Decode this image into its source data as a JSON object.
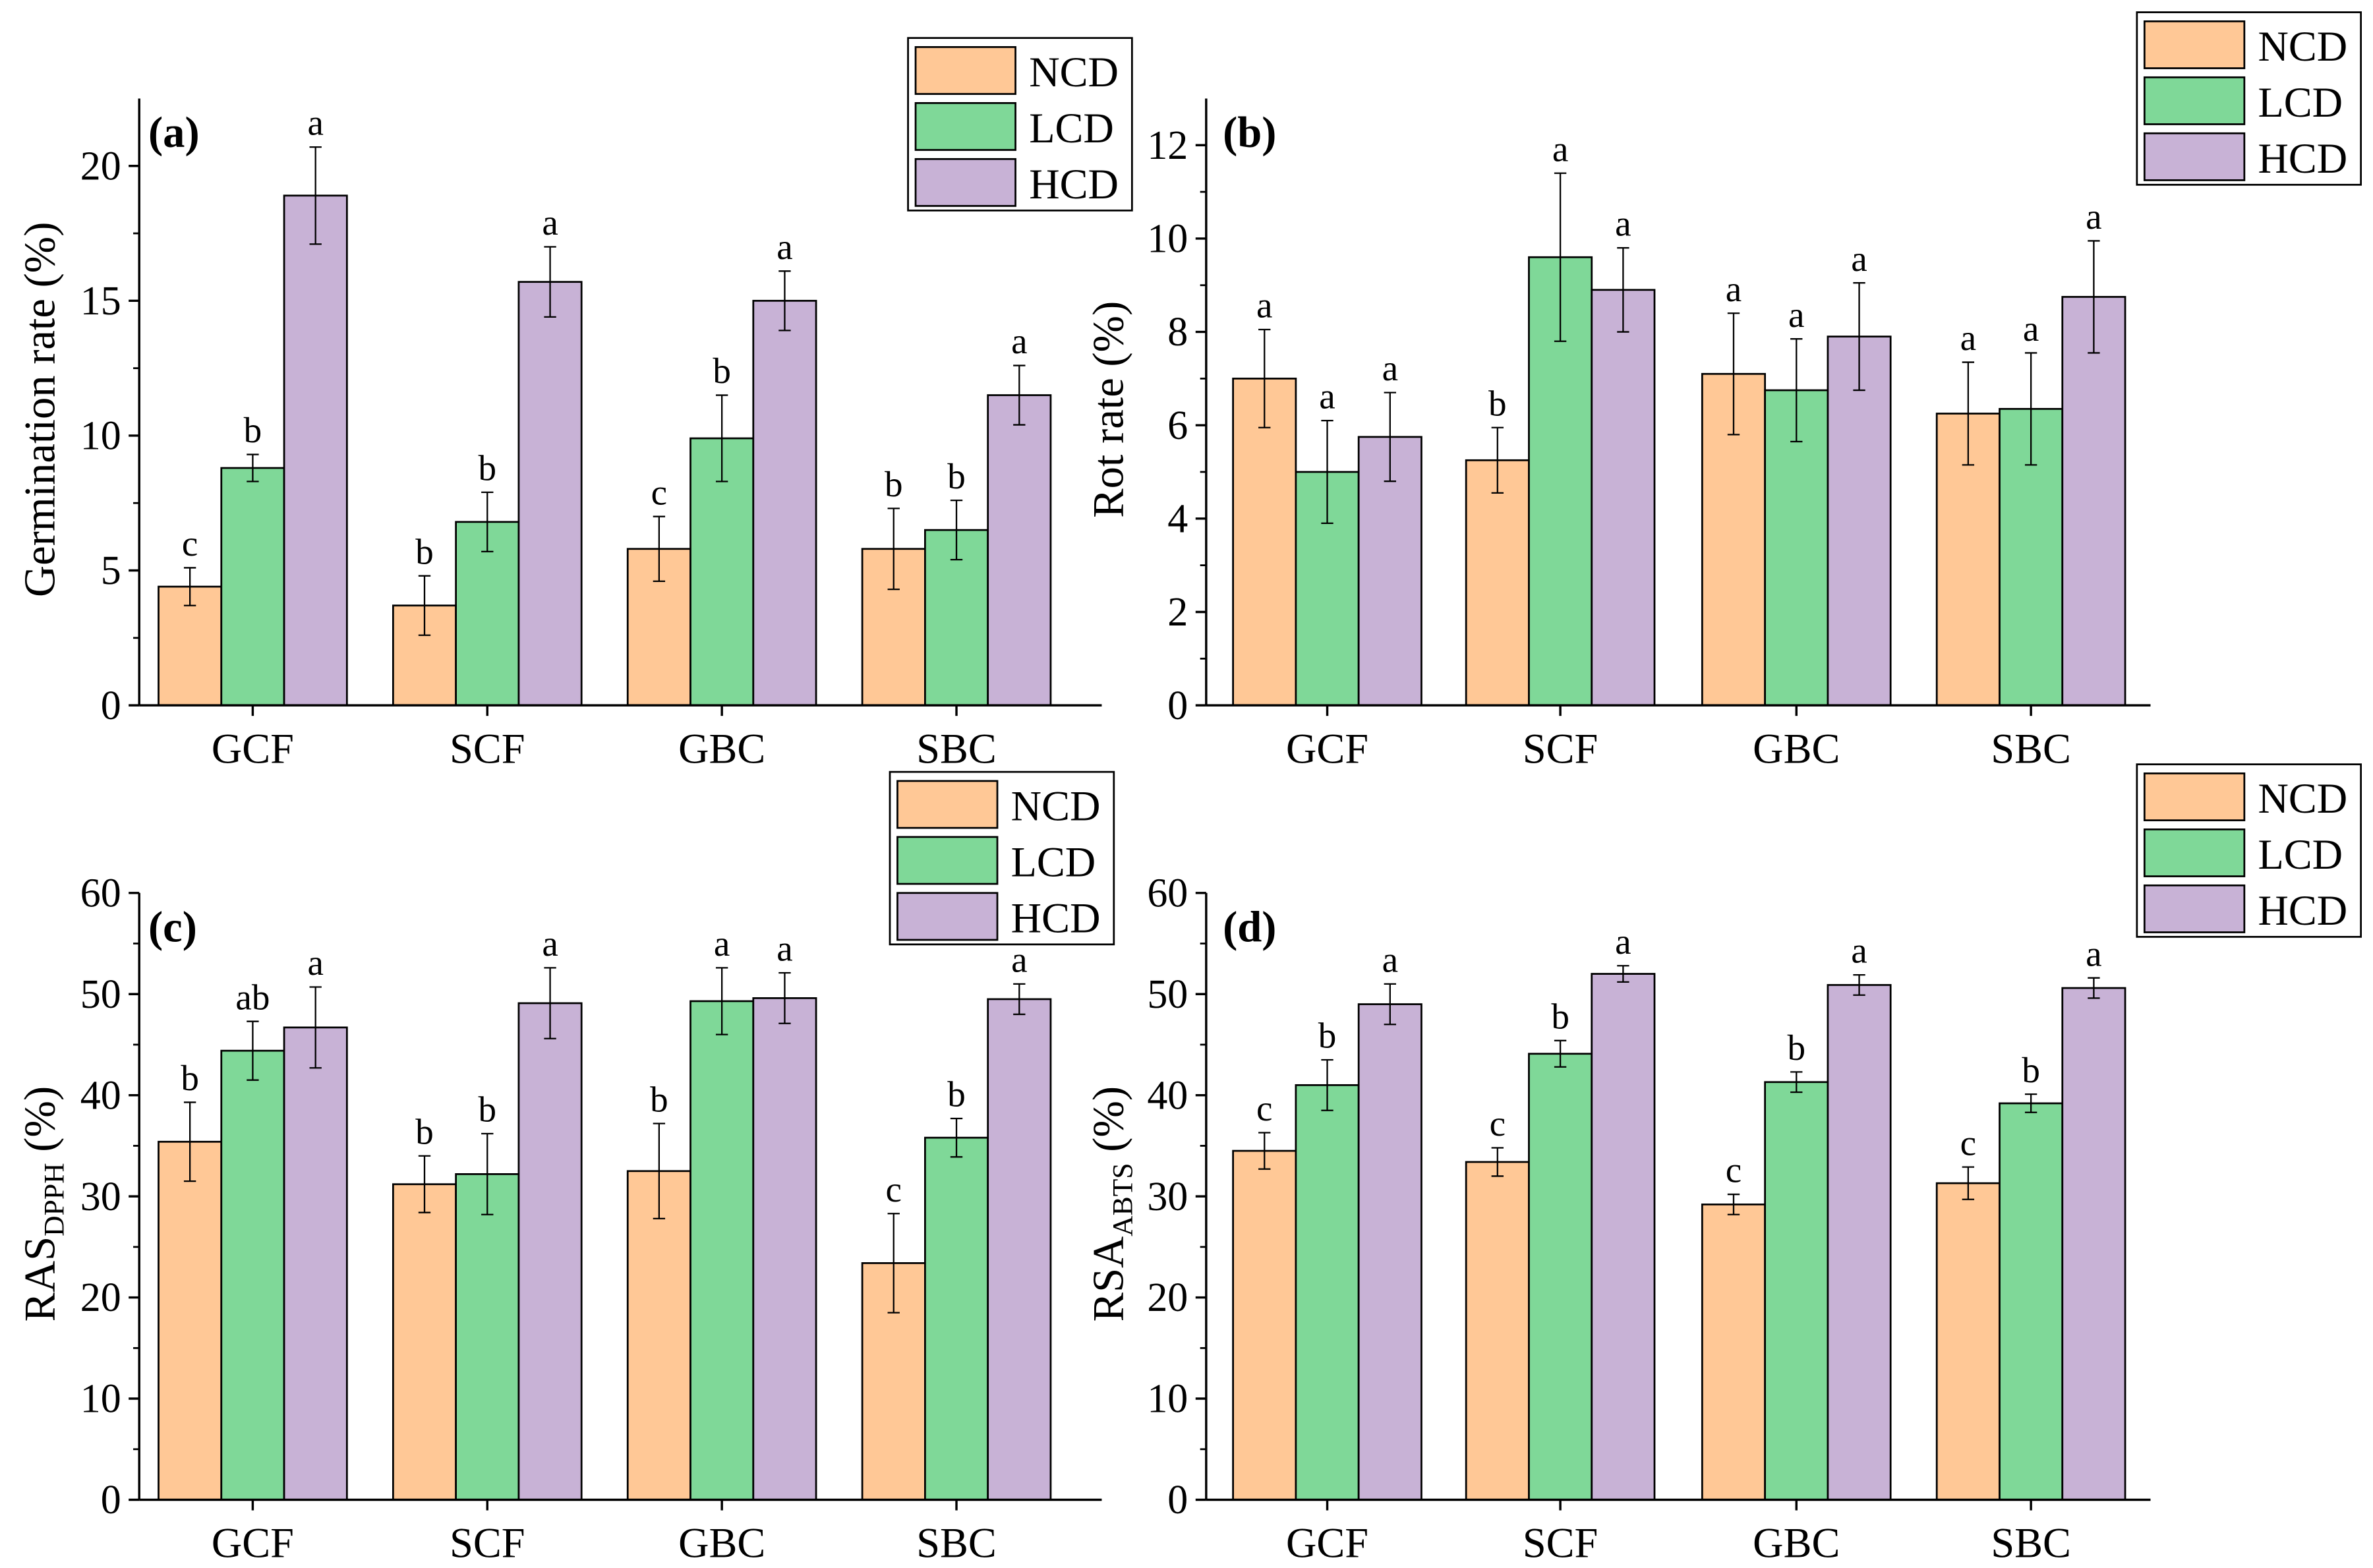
{
  "colors": {
    "NCD": "#FFC896",
    "LCD": "#7FD898",
    "HCD": "#C8B2D6"
  },
  "chart_data": [
    {
      "type": "bar",
      "panel": "(a)",
      "categories": [
        "GCF",
        "SCF",
        "GBC",
        "SBC"
      ],
      "ylabel": "Germination rate (%)",
      "ylabel_sub": "",
      "ylabel_suffix": "",
      "ylim": [
        0,
        22.5
      ],
      "yticks": [
        0,
        5,
        10,
        15,
        20
      ],
      "legend": [
        "NCD",
        "LCD",
        "HCD"
      ],
      "legend_placement": "top-right",
      "series": [
        {
          "name": "NCD",
          "values": [
            4.4,
            3.7,
            5.8,
            5.8
          ],
          "errors": [
            0.7,
            1.1,
            1.2,
            1.5
          ],
          "letters": [
            "c",
            "b",
            "c",
            "b"
          ]
        },
        {
          "name": "LCD",
          "values": [
            8.8,
            6.8,
            9.9,
            6.5
          ],
          "errors": [
            0.5,
            1.1,
            1.6,
            1.1
          ],
          "letters": [
            "b",
            "b",
            "b",
            "b"
          ]
        },
        {
          "name": "HCD",
          "values": [
            18.9,
            15.7,
            15.0,
            11.5
          ],
          "errors": [
            1.8,
            1.3,
            1.1,
            1.1
          ],
          "letters": [
            "a",
            "a",
            "a",
            "a"
          ]
        }
      ]
    },
    {
      "type": "bar",
      "panel": "(b)",
      "categories": [
        "GCF",
        "SCF",
        "GBC",
        "SBC"
      ],
      "ylabel": "Rot rate (%)",
      "ylabel_sub": "",
      "ylabel_suffix": "",
      "ylim": [
        0,
        13
      ],
      "yticks": [
        0,
        2,
        4,
        6,
        8,
        10,
        12
      ],
      "legend": [
        "NCD",
        "LCD",
        "HCD"
      ],
      "legend_placement": "top-right",
      "series": [
        {
          "name": "NCD",
          "values": [
            7.0,
            5.25,
            7.1,
            6.25
          ],
          "errors": [
            1.05,
            0.7,
            1.3,
            1.1
          ],
          "letters": [
            "a",
            "b",
            "a",
            "a"
          ]
        },
        {
          "name": "LCD",
          "values": [
            5.0,
            9.6,
            6.75,
            6.35
          ],
          "errors": [
            1.1,
            1.8,
            1.1,
            1.2
          ],
          "letters": [
            "a",
            "a",
            "a",
            "a"
          ]
        },
        {
          "name": "HCD",
          "values": [
            5.75,
            8.9,
            7.9,
            8.75
          ],
          "errors": [
            0.95,
            0.9,
            1.15,
            1.2
          ],
          "letters": [
            "a",
            "a",
            "a",
            "a"
          ]
        }
      ]
    },
    {
      "type": "bar",
      "panel": "(c)",
      "categories": [
        "GCF",
        "SCF",
        "GBC",
        "SBC"
      ],
      "ylabel": "RAS",
      "ylabel_sub": "DPPH",
      "ylabel_suffix": " (%)",
      "ylim": [
        0,
        60
      ],
      "yticks": [
        0,
        10,
        20,
        30,
        40,
        50,
        60
      ],
      "legend": [
        "NCD",
        "LCD",
        "HCD"
      ],
      "legend_placement": "top-right",
      "series": [
        {
          "name": "NCD",
          "values": [
            35.4,
            31.2,
            32.5,
            23.4
          ],
          "errors": [
            3.9,
            2.8,
            4.7,
            4.9
          ],
          "letters": [
            "b",
            "b",
            "b",
            "c"
          ]
        },
        {
          "name": "LCD",
          "values": [
            44.4,
            32.2,
            49.3,
            35.8
          ],
          "errors": [
            2.9,
            4.0,
            3.3,
            1.9
          ],
          "letters": [
            "ab",
            "b",
            "a",
            "b"
          ]
        },
        {
          "name": "HCD",
          "values": [
            46.7,
            49.1,
            49.6,
            49.5
          ],
          "errors": [
            4.0,
            3.5,
            2.5,
            1.5
          ],
          "letters": [
            "a",
            "a",
            "a",
            "a"
          ]
        }
      ]
    },
    {
      "type": "bar",
      "panel": "(d)",
      "categories": [
        "GCF",
        "SCF",
        "GBC",
        "SBC"
      ],
      "ylabel": "RSA",
      "ylabel_sub": "ABTS",
      "ylabel_suffix": " (%)",
      "ylim": [
        0,
        60
      ],
      "yticks": [
        0,
        10,
        20,
        30,
        40,
        50,
        60
      ],
      "legend": [
        "NCD",
        "LCD",
        "HCD"
      ],
      "legend_placement": "top-right",
      "series": [
        {
          "name": "NCD",
          "values": [
            34.5,
            33.4,
            29.2,
            31.3
          ],
          "errors": [
            1.8,
            1.4,
            1.0,
            1.6
          ],
          "letters": [
            "c",
            "c",
            "c",
            "c"
          ]
        },
        {
          "name": "LCD",
          "values": [
            41.0,
            44.1,
            41.3,
            39.2
          ],
          "errors": [
            2.5,
            1.3,
            1.0,
            0.9
          ],
          "letters": [
            "b",
            "b",
            "b",
            "b"
          ]
        },
        {
          "name": "HCD",
          "values": [
            49.0,
            52.0,
            50.9,
            50.6
          ],
          "errors": [
            2.0,
            0.8,
            1.0,
            1.0
          ],
          "letters": [
            "a",
            "a",
            "a",
            "a"
          ]
        }
      ]
    }
  ]
}
